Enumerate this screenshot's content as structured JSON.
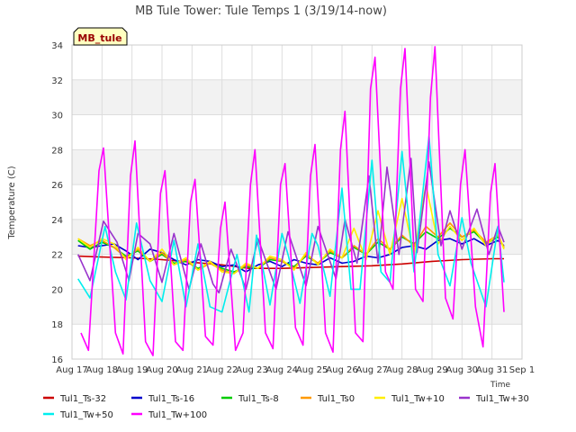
{
  "chart_data": {
    "type": "line",
    "title": "MB Tule Tower: Tule Temps 1 (3/19/14-now)",
    "ylabel": "Temperature (C)",
    "xlabel": "",
    "x_axis_marker": "Time",
    "station_badge": "MB_tule",
    "ylim": [
      16,
      34
    ],
    "yticks": [
      16,
      18,
      20,
      22,
      24,
      26,
      28,
      30,
      32,
      34
    ],
    "xlim": [
      17,
      32
    ],
    "xticks": [
      {
        "v": 17,
        "label": "Aug 17"
      },
      {
        "v": 18,
        "label": "Aug 18"
      },
      {
        "v": 19,
        "label": "Aug 19"
      },
      {
        "v": 20,
        "label": "Aug 20"
      },
      {
        "v": 21,
        "label": "Aug 21"
      },
      {
        "v": 22,
        "label": "Aug 22"
      },
      {
        "v": 23,
        "label": "Aug 23"
      },
      {
        "v": 24,
        "label": "Aug 24"
      },
      {
        "v": 25,
        "label": "Aug 25"
      },
      {
        "v": 26,
        "label": "Aug 26"
      },
      {
        "v": 27,
        "label": "Aug 27"
      },
      {
        "v": 28,
        "label": "Aug 28"
      },
      {
        "v": 29,
        "label": "Aug 29"
      },
      {
        "v": 30,
        "label": "Aug 30"
      },
      {
        "v": 31,
        "label": "Aug 31"
      },
      {
        "v": 32,
        "label": "Sep 1"
      }
    ],
    "grid": true,
    "legend_position": "bottom",
    "series": [
      {
        "name": "Tul1_Ts-32",
        "color": "#cc0000",
        "x": [
          17.2,
          18,
          19,
          20,
          21,
          22,
          22.9,
          23,
          24,
          25,
          26,
          27,
          28,
          29,
          30,
          31,
          31.4
        ],
        "y": [
          21.9,
          21.85,
          21.8,
          21.7,
          21.55,
          21.4,
          21.2,
          21.2,
          21.2,
          21.25,
          21.3,
          21.35,
          21.45,
          21.6,
          21.7,
          21.75,
          21.75
        ]
      },
      {
        "name": "Tul1_Ts-16",
        "color": "#0000cc",
        "x": [
          17.2,
          17.6,
          18.0,
          18.4,
          18.8,
          19.2,
          19.6,
          20.0,
          20.4,
          20.8,
          21.2,
          21.6,
          22.0,
          22.4,
          22.8,
          23.2,
          23.6,
          24.0,
          24.4,
          24.8,
          25.2,
          25.6,
          26.0,
          26.4,
          26.8,
          27.2,
          27.6,
          28.0,
          28.4,
          28.8,
          29.2,
          29.6,
          30.0,
          30.4,
          30.8,
          31.2,
          31.4
        ],
        "y": [
          22.5,
          22.4,
          22.5,
          22.6,
          22.2,
          21.7,
          22.3,
          22.1,
          21.7,
          21.4,
          21.7,
          21.6,
          21.3,
          21.4,
          21.0,
          21.4,
          21.6,
          21.3,
          21.7,
          21.5,
          21.4,
          21.8,
          21.5,
          21.6,
          21.9,
          21.8,
          22.0,
          22.4,
          22.5,
          22.3,
          22.8,
          22.9,
          22.6,
          22.9,
          22.5,
          22.8,
          22.5
        ]
      },
      {
        "name": "Tul1_Ts-8",
        "color": "#00cc00",
        "x": [
          17.2,
          17.6,
          18.0,
          18.4,
          18.8,
          19.2,
          19.6,
          20.0,
          20.4,
          20.8,
          21.2,
          21.6,
          22.0,
          22.4,
          22.8,
          23.2,
          23.6,
          24.0,
          24.4,
          24.8,
          25.2,
          25.6,
          26.0,
          26.4,
          26.8,
          27.2,
          27.6,
          28.0,
          28.4,
          28.8,
          29.2,
          29.6,
          30.0,
          30.4,
          30.8,
          31.2,
          31.4
        ],
        "y": [
          22.8,
          22.3,
          22.7,
          22.4,
          21.9,
          22.2,
          21.6,
          22.0,
          21.5,
          21.6,
          21.2,
          21.5,
          21.2,
          21.0,
          21.3,
          21.2,
          21.7,
          21.6,
          21.3,
          21.9,
          21.5,
          22.1,
          21.8,
          22.4,
          22.0,
          22.7,
          22.3,
          23.0,
          22.6,
          23.3,
          22.9,
          23.5,
          23.0,
          23.3,
          22.6,
          23.0,
          22.4
        ]
      },
      {
        "name": "Tul1_Ts0",
        "color": "#ff9900",
        "x": [
          17.2,
          17.6,
          18.0,
          18.4,
          18.8,
          19.2,
          19.6,
          20.0,
          20.4,
          20.8,
          21.2,
          21.6,
          22.0,
          22.4,
          22.8,
          23.2,
          23.6,
          24.0,
          24.4,
          24.8,
          25.2,
          25.6,
          26.0,
          26.4,
          26.8,
          27.2,
          27.6,
          28.0,
          28.4,
          28.8,
          29.2,
          29.6,
          30.0,
          30.4,
          30.8,
          31.2,
          31.4
        ],
        "y": [
          22.9,
          22.5,
          22.8,
          22.4,
          21.8,
          22.3,
          21.6,
          22.1,
          21.4,
          21.7,
          21.1,
          21.5,
          21.1,
          20.9,
          21.4,
          21.2,
          21.8,
          21.6,
          21.2,
          22.0,
          21.5,
          22.2,
          21.8,
          22.5,
          22.0,
          22.9,
          22.3,
          23.1,
          22.5,
          23.6,
          23.0,
          23.8,
          23.0,
          23.4,
          22.7,
          23.1,
          22.4
        ]
      },
      {
        "name": "Tul1_Tw+10",
        "color": "#ffee00",
        "x": [
          17.2,
          17.6,
          18.0,
          18.4,
          18.8,
          19.2,
          19.6,
          20.0,
          20.4,
          20.8,
          21.2,
          21.6,
          22.0,
          22.4,
          22.8,
          23.2,
          23.6,
          24.0,
          24.4,
          24.8,
          25.2,
          25.6,
          26.0,
          26.4,
          26.8,
          27.2,
          27.6,
          28.0,
          28.4,
          28.8,
          29.2,
          29.6,
          30.0,
          30.4,
          30.8,
          31.2,
          31.4
        ],
        "y": [
          22.9,
          22.4,
          22.9,
          22.6,
          21.7,
          22.4,
          21.6,
          22.3,
          21.4,
          21.8,
          21.1,
          21.6,
          21.0,
          20.9,
          21.5,
          21.2,
          21.9,
          21.7,
          21.1,
          22.1,
          21.4,
          22.3,
          21.8,
          23.5,
          21.7,
          24.5,
          22.0,
          25.2,
          22.0,
          26.0,
          22.6,
          23.6,
          22.8,
          23.5,
          22.5,
          23.2,
          22.3
        ]
      },
      {
        "name": "Tul1_Tw+30",
        "color": "#9933cc",
        "x": [
          17.2,
          17.6,
          18.05,
          18.5,
          18.9,
          19.2,
          19.6,
          20.0,
          20.4,
          20.9,
          21.3,
          21.7,
          21.9,
          22.3,
          22.8,
          23.2,
          23.8,
          24.2,
          24.8,
          25.2,
          25.8,
          26.1,
          26.5,
          26.9,
          27.2,
          27.5,
          27.9,
          28.3,
          28.5,
          28.9,
          29.3,
          29.6,
          30.0,
          30.5,
          30.9,
          31.2,
          31.4
        ],
        "y": [
          22.0,
          20.5,
          23.9,
          22.7,
          20.5,
          23.2,
          22.6,
          20.4,
          23.2,
          20.0,
          22.6,
          20.3,
          19.8,
          22.3,
          20.0,
          22.9,
          20.0,
          23.3,
          20.2,
          23.6,
          20.6,
          24.0,
          21.5,
          26.5,
          21.5,
          27.0,
          22.0,
          27.5,
          22.1,
          27.3,
          22.5,
          24.5,
          22.3,
          24.6,
          22.0,
          23.6,
          22.7
        ]
      },
      {
        "name": "Tul1_Tw+50",
        "color": "#00eeee",
        "x": [
          17.2,
          17.6,
          18.1,
          18.45,
          18.8,
          19.15,
          19.6,
          20.0,
          20.4,
          20.8,
          21.2,
          21.6,
          22.0,
          22.5,
          22.9,
          23.15,
          23.6,
          24.0,
          24.2,
          24.6,
          25.0,
          25.2,
          25.6,
          26.0,
          26.3,
          26.6,
          27.0,
          27.3,
          27.6,
          28.0,
          28.4,
          28.9,
          29.2,
          29.6,
          30.0,
          30.3,
          30.8,
          31.2,
          31.4
        ],
        "y": [
          20.6,
          19.5,
          23.6,
          21.0,
          19.4,
          23.8,
          20.5,
          19.3,
          22.8,
          19.0,
          22.6,
          19.0,
          18.7,
          22.0,
          18.7,
          23.1,
          19.1,
          23.2,
          22.0,
          19.2,
          23.2,
          22.5,
          19.6,
          25.8,
          20.0,
          20.0,
          27.4,
          21.0,
          20.4,
          27.9,
          21.0,
          28.8,
          22.0,
          20.2,
          24.1,
          21.5,
          19.0,
          23.6,
          20.4
        ]
      },
      {
        "name": "Tul1_Tw+100",
        "color": "#ff00ff",
        "x": [
          17.3,
          17.55,
          17.9,
          18.05,
          18.45,
          18.7,
          18.95,
          19.1,
          19.45,
          19.7,
          19.95,
          20.1,
          20.45,
          20.7,
          20.95,
          21.1,
          21.45,
          21.7,
          21.95,
          22.1,
          22.45,
          22.7,
          22.95,
          23.1,
          23.45,
          23.7,
          23.95,
          24.1,
          24.45,
          24.7,
          24.95,
          25.1,
          25.45,
          25.7,
          25.95,
          26.1,
          26.45,
          26.7,
          26.95,
          27.1,
          27.45,
          27.7,
          27.95,
          28.1,
          28.45,
          28.7,
          28.95,
          29.1,
          29.45,
          29.7,
          29.95,
          30.1,
          30.45,
          30.7,
          30.95,
          31.1,
          31.4
        ],
        "y": [
          17.5,
          16.5,
          26.8,
          28.1,
          17.5,
          16.3,
          26.5,
          28.5,
          17.0,
          16.2,
          25.5,
          26.8,
          17.0,
          16.5,
          25.0,
          26.3,
          17.3,
          16.8,
          23.5,
          25.0,
          16.5,
          17.5,
          26.0,
          28.0,
          17.5,
          16.6,
          26.0,
          27.2,
          17.8,
          16.8,
          26.5,
          28.3,
          17.5,
          16.4,
          28.0,
          30.2,
          17.5,
          17.0,
          31.5,
          33.3,
          21.0,
          20.0,
          31.5,
          33.8,
          20.0,
          19.3,
          31.0,
          33.9,
          19.5,
          18.3,
          26.0,
          28.0,
          19.0,
          16.7,
          25.5,
          27.2,
          18.7
        ]
      }
    ]
  }
}
